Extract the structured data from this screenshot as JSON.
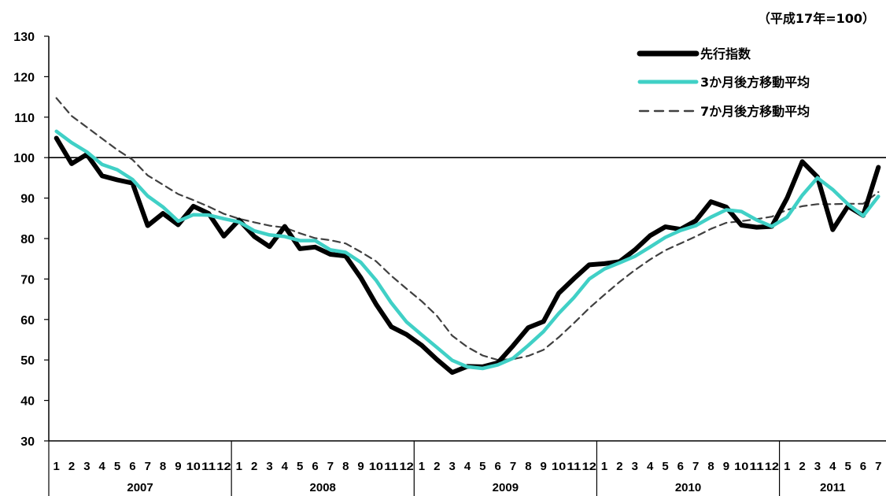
{
  "chart_data": {
    "type": "line",
    "unit_note": "（平成17年=100）",
    "ylim": [
      30,
      130
    ],
    "yticks": [
      30,
      40,
      50,
      60,
      70,
      80,
      90,
      100,
      110,
      120,
      130
    ],
    "reference_line": 100,
    "x_month_labels": [
      "1",
      "2",
      "3",
      "4",
      "5",
      "6",
      "7",
      "8",
      "9",
      "10",
      "11",
      "12",
      "1",
      "2",
      "3",
      "4",
      "5",
      "6",
      "7",
      "8",
      "9",
      "10",
      "11",
      "12",
      "1",
      "2",
      "3",
      "4",
      "5",
      "6",
      "7",
      "8",
      "9",
      "10",
      "11",
      "12",
      "1",
      "2",
      "3",
      "4",
      "5",
      "6",
      "7",
      "8",
      "9",
      "10",
      "11",
      "12",
      "1",
      "2",
      "3",
      "4",
      "5",
      "6",
      "7"
    ],
    "years": [
      {
        "label": "2007",
        "months": 12
      },
      {
        "label": "2008",
        "months": 12
      },
      {
        "label": "2009",
        "months": 12
      },
      {
        "label": "2010",
        "months": 12
      },
      {
        "label": "2011",
        "months": 7
      }
    ],
    "legend_position": "top-right",
    "series": [
      {
        "name": "先行指数",
        "color": "#000000",
        "style": "thick-solid",
        "values": [
          104.8,
          98.5,
          100.8,
          95.5,
          94.5,
          93.7,
          83.2,
          86.2,
          83.4,
          88.0,
          86.2,
          80.6,
          84.6,
          80.5,
          78.0,
          83.0,
          77.5,
          77.9,
          76.1,
          75.7,
          70.3,
          63.8,
          58.2,
          56.3,
          53.6,
          50.1,
          46.9,
          48.4,
          48.3,
          49.3,
          53.5,
          58.0,
          59.5,
          66.5,
          70.1,
          73.5,
          73.8,
          74.3,
          77.2,
          80.7,
          82.9,
          82.3,
          84.4,
          89.1,
          87.8,
          83.3,
          82.8,
          83.0,
          90.0,
          99.0,
          95.2,
          82.2,
          88.0,
          85.7,
          97.6
        ]
      },
      {
        "name": "3か月後方移動平均",
        "color": "#40d0c6",
        "style": "thick-solid",
        "values": [
          106.5,
          103.7,
          101.4,
          98.3,
          97.0,
          94.6,
          90.5,
          87.8,
          84.3,
          85.9,
          85.8,
          84.9,
          84.1,
          81.9,
          80.9,
          80.5,
          79.5,
          79.5,
          77.2,
          76.6,
          74.1,
          69.7,
          64.1,
          59.4,
          56.2,
          53.1,
          49.9,
          48.3,
          47.9,
          48.8,
          50.4,
          53.6,
          57.0,
          61.5,
          65.4,
          70.0,
          72.5,
          74.0,
          75.6,
          77.9,
          80.3,
          82.0,
          83.2,
          85.3,
          87.1,
          86.7,
          84.6,
          83.0,
          85.3,
          90.7,
          95.0,
          92.1,
          88.5,
          85.6,
          90.4
        ]
      },
      {
        "name": "7か月後方移動平均",
        "color": "#404040",
        "style": "dashed",
        "values": [
          114.7,
          110.3,
          107.5,
          104.7,
          101.9,
          99.5,
          95.6,
          93.3,
          91.0,
          89.5,
          87.9,
          86.1,
          84.9,
          84.0,
          83.2,
          82.7,
          81.3,
          80.1,
          79.6,
          78.8,
          76.7,
          74.4,
          70.8,
          67.6,
          64.5,
          60.9,
          56.0,
          53.2,
          51.1,
          50.0,
          50.2,
          51.0,
          52.5,
          55.6,
          59.1,
          62.8,
          66.1,
          69.3,
          72.2,
          74.8,
          77.1,
          78.8,
          80.5,
          82.4,
          83.9,
          84.3,
          84.8,
          85.4,
          87.1,
          88.0,
          88.5,
          88.5,
          88.6,
          88.6,
          91.5
        ]
      }
    ]
  }
}
